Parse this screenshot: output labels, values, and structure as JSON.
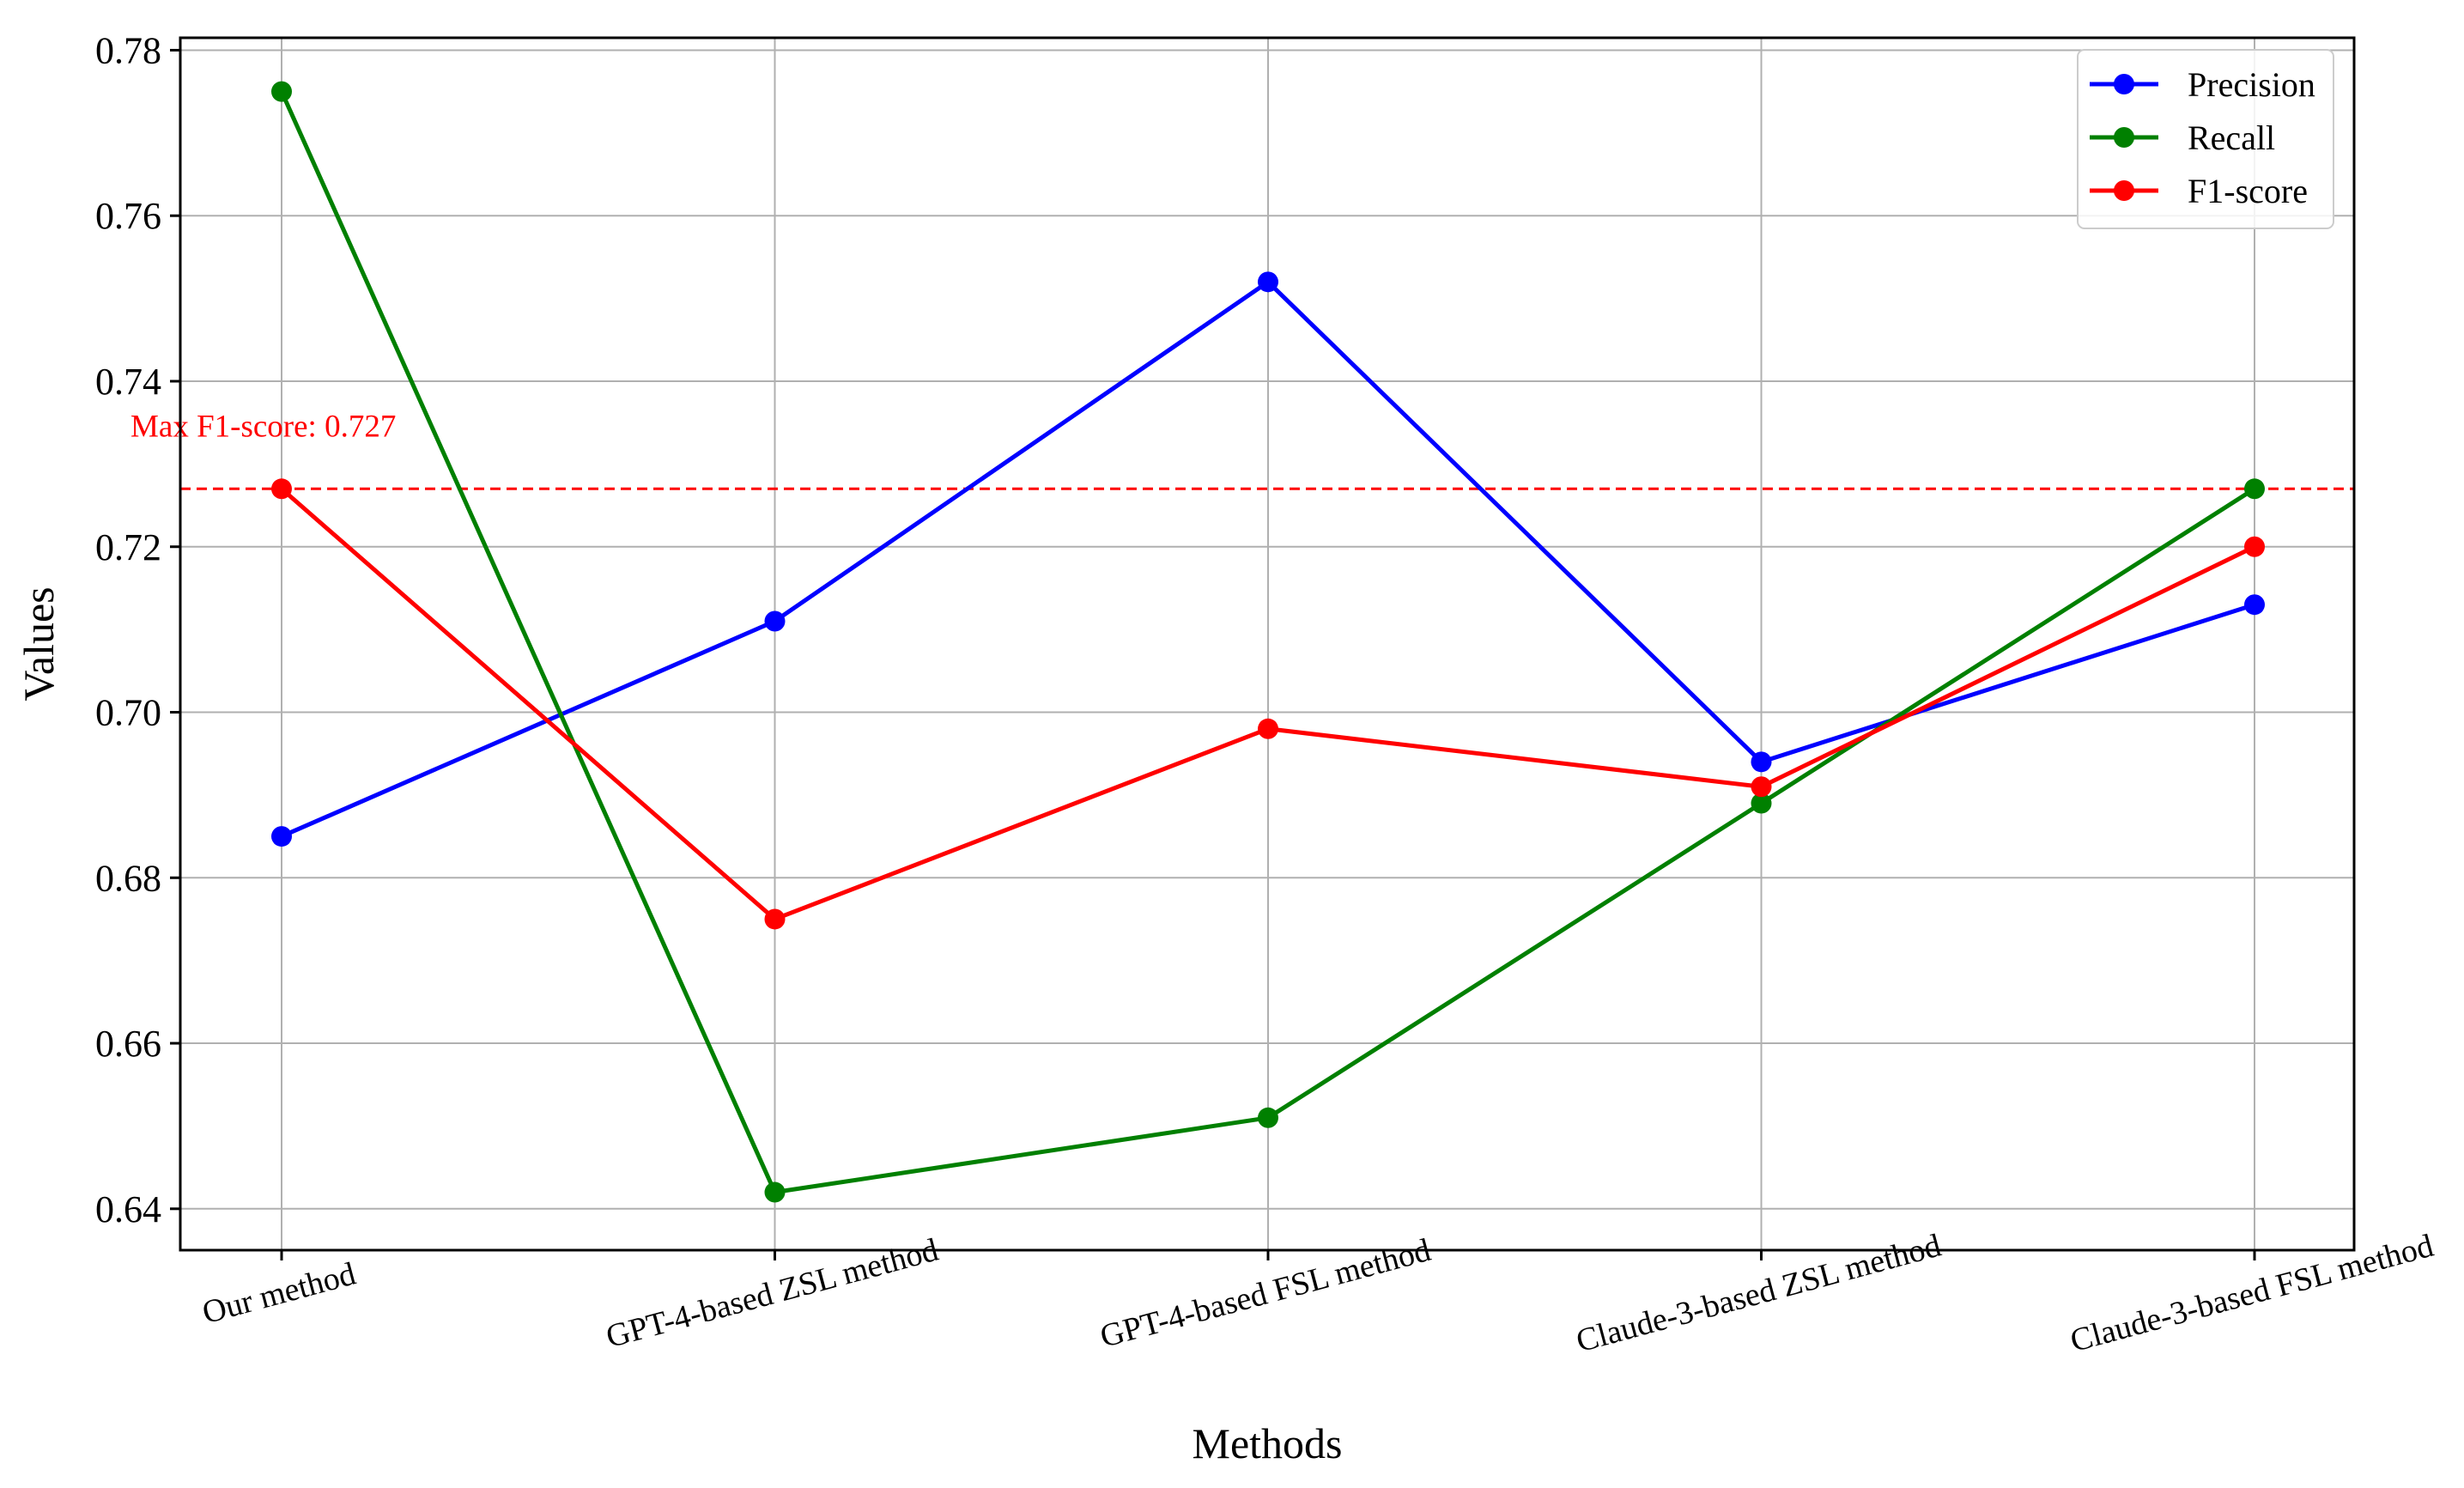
{
  "chart_data": {
    "type": "line",
    "title": "",
    "xlabel": "Methods",
    "ylabel": "Values",
    "categories": [
      "Our method",
      "GPT-4-based ZSL method",
      "GPT-4-based FSL method",
      "Claude-3-based ZSL method",
      "Claude-3-based FSL method"
    ],
    "ylim": [
      0.635,
      0.7815
    ],
    "yticks": [
      0.64,
      0.66,
      0.68,
      0.7,
      0.72,
      0.74,
      0.76,
      0.78
    ],
    "ytick_labels": [
      "0.64",
      "0.66",
      "0.68",
      "0.70",
      "0.72",
      "0.74",
      "0.76",
      "0.78"
    ],
    "grid": true,
    "legend_position": "top-right",
    "series": [
      {
        "name": "Precision",
        "color": "#0000ff",
        "values": [
          0.685,
          0.711,
          0.752,
          0.694,
          0.713
        ]
      },
      {
        "name": "Recall",
        "color": "#008000",
        "values": [
          0.775,
          0.642,
          0.651,
          0.689,
          0.727
        ]
      },
      {
        "name": "F1-score",
        "color": "#ff0000",
        "values": [
          0.727,
          0.675,
          0.698,
          0.691,
          0.72
        ]
      }
    ],
    "reference_line": {
      "value": 0.727,
      "color": "#ff0000",
      "style": "dashed",
      "label": "Max F1-score: 0.727"
    }
  }
}
